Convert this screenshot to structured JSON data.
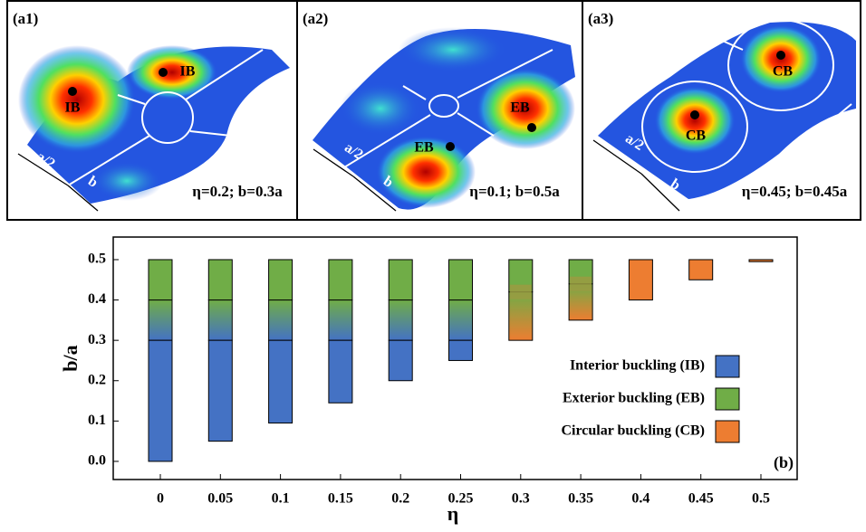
{
  "panels": [
    {
      "label": "(a1)",
      "labels": [
        "IB",
        "IB",
        "a/2",
        "b"
      ],
      "caption": "η=0.2; b=0.3a"
    },
    {
      "label": "(a2)",
      "labels": [
        "EB",
        "EB",
        "a/2",
        "b"
      ],
      "caption": "η=0.1; b=0.5a"
    },
    {
      "label": "(a3)",
      "labels": [
        "CB",
        "CB",
        "a/2",
        "b"
      ],
      "caption": "η=0.45; b=0.45a"
    }
  ],
  "chart_data": {
    "type": "range-bar",
    "panel_label": "(b)",
    "x_label": "η",
    "y_label": "b/a",
    "categories": [
      "0",
      "0.05",
      "0.1",
      "0.15",
      "0.2",
      "0.25",
      "0.3",
      "0.35",
      "0.4",
      "0.45",
      "0.5"
    ],
    "ylim": [
      -0.045,
      0.556
    ],
    "yticks": [
      {
        "value": 0,
        "label": "0.0"
      },
      0.1,
      0.2,
      0.3,
      0.4,
      0.5
    ],
    "series": [
      {
        "name": "Interior buckling (IB)",
        "color": "#4472c4",
        "low": [
          0,
          0.05,
          0.095,
          0.145,
          0.2,
          0.25,
          null,
          null,
          null,
          null,
          null
        ],
        "high": [
          0.3,
          0.3,
          0.3,
          0.3,
          0.3,
          0.3,
          null,
          null,
          null,
          null,
          null
        ]
      },
      {
        "name": "Exterior buckling (EB)",
        "color": "#70ad47",
        "low": [
          0.4,
          0.4,
          0.4,
          0.4,
          0.4,
          0.4,
          0.42,
          0.44,
          null,
          null,
          null
        ],
        "high": [
          0.5,
          0.5,
          0.5,
          0.5,
          0.5,
          0.5,
          0.5,
          0.5,
          null,
          null,
          null
        ]
      },
      {
        "name": "Circular buckling (CB)",
        "color": "#ed7d31",
        "low": [
          null,
          null,
          null,
          null,
          null,
          null,
          0.3,
          0.35,
          0.4,
          0.45,
          0.495
        ],
        "high": [
          null,
          null,
          null,
          null,
          null,
          null,
          0.42,
          0.44,
          0.5,
          0.5,
          0.5
        ]
      }
    ]
  }
}
